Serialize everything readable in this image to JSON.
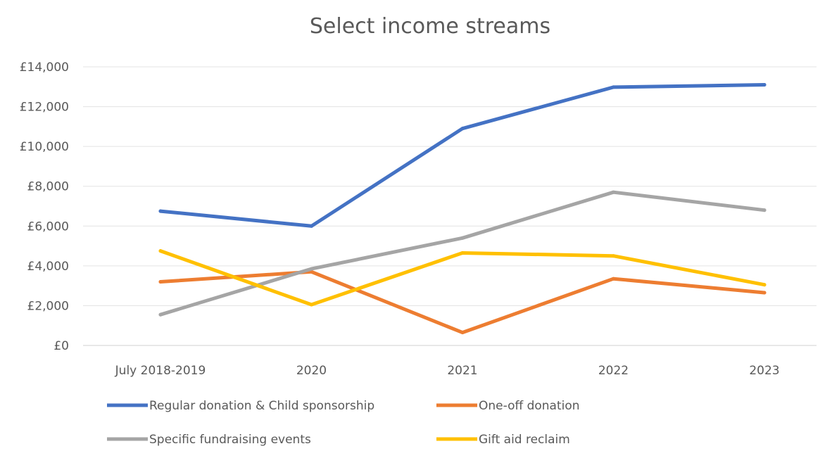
{
  "chart_data": {
    "type": "line",
    "title_partial": "…g…",
    "subtitle": "Select income streams",
    "categories": [
      "July 2018-2019",
      "2020",
      "2021",
      "2022",
      "2023"
    ],
    "ylim": [
      0,
      14000
    ],
    "yticks": [
      0,
      2000,
      4000,
      6000,
      8000,
      10000,
      12000,
      14000
    ],
    "ytick_labels": [
      "£0",
      "£2,000",
      "£4,000",
      "£6,000",
      "£8,000",
      "£10,000",
      "£12,000",
      "£14,000"
    ],
    "grid": true,
    "legend_position": "bottom",
    "series": [
      {
        "name": "Regular donation & Child sponsorship",
        "color": "#4472C4",
        "values": [
          6750,
          6000,
          10900,
          12980,
          13100
        ]
      },
      {
        "name": "One-off donation",
        "color": "#ED7D31",
        "values": [
          3200,
          3700,
          650,
          3350,
          2650
        ]
      },
      {
        "name": "Specific fundraising events",
        "color": "#A5A5A5",
        "values": [
          1550,
          3850,
          5400,
          7700,
          6800
        ]
      },
      {
        "name": "Gift aid reclaim",
        "color": "#FFC000",
        "values": [
          4750,
          2050,
          4650,
          4500,
          3050
        ]
      }
    ]
  }
}
